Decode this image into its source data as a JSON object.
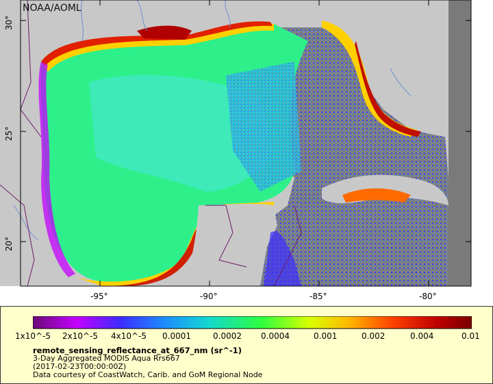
{
  "watermark": "NOAA/AOML",
  "axes": {
    "lat_labels": [
      "30°",
      "25°",
      "20°"
    ],
    "lon_labels": [
      "-95°",
      "-90°",
      "-85°",
      "-80°"
    ]
  },
  "colorbar": {
    "ticks": [
      "1x10^-5",
      "2x10^-5",
      "4x10^-5",
      "0.0001",
      "0.0002",
      "0.0004",
      "0.001",
      "0.002",
      "0.004",
      "0.01"
    ],
    "colors": [
      "#7a0a8a",
      "#c400ff",
      "#3c2cff",
      "#1d8cff",
      "#17e8c2",
      "#2cff40",
      "#d9ff00",
      "#ffb800",
      "#ff4000",
      "#a00000",
      "#7a0000"
    ]
  },
  "legend": {
    "title": "remote_sensing_reflectance_at_667_nm (sr^-1)",
    "line1": "3-Day Aggregated MODIS Aqua Rrs667",
    "line2": "(2017-02-23T00:00:00Z)",
    "line3": "Data courtesy of CoastWatch, Carib. and GoM Regional Node"
  },
  "colors": {
    "land": "#c8c8c8",
    "nodata": "#808080",
    "legend_bg": "#ffffcc",
    "grid": "#000000",
    "river": "#6f8fd0",
    "border": "#6a1a6a"
  }
}
